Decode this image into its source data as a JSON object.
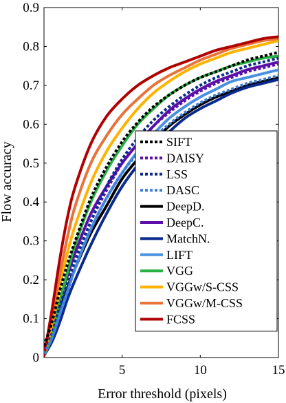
{
  "chart_data": {
    "type": "line",
    "xlabel": "Error threshold (pixels)",
    "ylabel": "Flow accuracy",
    "xlim": [
      0,
      15
    ],
    "ylim": [
      0,
      0.9
    ],
    "xticks": [
      5,
      10,
      15
    ],
    "yticks": [
      0,
      0.1,
      0.2,
      0.3,
      0.4,
      0.5,
      0.6,
      0.7,
      0.8,
      0.9
    ],
    "grid": false,
    "legend_position": "bottom-right",
    "x": [
      0,
      0.5,
      1,
      1.5,
      2,
      3,
      4,
      5,
      6,
      7,
      8,
      9,
      10,
      11,
      12,
      13,
      14,
      15
    ],
    "series": [
      {
        "name": "SIFT",
        "color": "#000000",
        "style": "dotted",
        "values": [
          0.03,
          0.09,
          0.17,
          0.24,
          0.3,
          0.41,
          0.49,
          0.555,
          0.605,
          0.645,
          0.675,
          0.7,
          0.72,
          0.735,
          0.75,
          0.765,
          0.775,
          0.785
        ]
      },
      {
        "name": "DAISY",
        "color": "#5b0fa8",
        "style": "dotted",
        "values": [
          0.01,
          0.06,
          0.13,
          0.19,
          0.25,
          0.35,
          0.43,
          0.5,
          0.55,
          0.595,
          0.63,
          0.66,
          0.685,
          0.705,
          0.72,
          0.735,
          0.745,
          0.755
        ]
      },
      {
        "name": "LSS",
        "color": "#0a2a8c",
        "style": "dotted",
        "values": [
          0.01,
          0.06,
          0.13,
          0.19,
          0.25,
          0.35,
          0.44,
          0.51,
          0.565,
          0.61,
          0.645,
          0.675,
          0.7,
          0.72,
          0.735,
          0.75,
          0.76,
          0.77
        ]
      },
      {
        "name": "DASC",
        "color": "#3b7dd8",
        "style": "dotted",
        "values": [
          0.01,
          0.05,
          0.11,
          0.17,
          0.23,
          0.33,
          0.41,
          0.475,
          0.525,
          0.565,
          0.6,
          0.63,
          0.655,
          0.675,
          0.69,
          0.705,
          0.715,
          0.725
        ]
      },
      {
        "name": "DeepD.",
        "color": "#000000",
        "style": "solid",
        "values": [
          0.01,
          0.06,
          0.12,
          0.18,
          0.23,
          0.32,
          0.39,
          0.46,
          0.51,
          0.555,
          0.595,
          0.625,
          0.65,
          0.67,
          0.685,
          0.7,
          0.71,
          0.72
        ]
      },
      {
        "name": "DeepC.",
        "color": "#5b0fa8",
        "style": "solid",
        "values": [
          0.005,
          0.06,
          0.14,
          0.21,
          0.27,
          0.37,
          0.44,
          0.5,
          0.55,
          0.595,
          0.635,
          0.665,
          0.69,
          0.71,
          0.725,
          0.74,
          0.75,
          0.76
        ]
      },
      {
        "name": "MatchN.",
        "color": "#0a2a8c",
        "style": "solid",
        "values": [
          0.005,
          0.04,
          0.09,
          0.15,
          0.2,
          0.29,
          0.37,
          0.44,
          0.495,
          0.54,
          0.58,
          0.615,
          0.64,
          0.66,
          0.68,
          0.695,
          0.705,
          0.715
        ]
      },
      {
        "name": "LIFT",
        "color": "#4a90e2",
        "style": "solid",
        "values": [
          0.005,
          0.05,
          0.11,
          0.17,
          0.23,
          0.33,
          0.41,
          0.475,
          0.53,
          0.575,
          0.615,
          0.645,
          0.67,
          0.69,
          0.71,
          0.72,
          0.73,
          0.74
        ]
      },
      {
        "name": "VGG",
        "color": "#2ab043",
        "style": "solid",
        "values": [
          0.005,
          0.06,
          0.14,
          0.22,
          0.29,
          0.4,
          0.48,
          0.545,
          0.6,
          0.64,
          0.675,
          0.7,
          0.72,
          0.735,
          0.75,
          0.76,
          0.77,
          0.775
        ]
      },
      {
        "name": "VGGw/S-CSS",
        "color": "#ffb300",
        "style": "solid",
        "values": [
          0.005,
          0.08,
          0.18,
          0.27,
          0.34,
          0.45,
          0.53,
          0.59,
          0.64,
          0.68,
          0.71,
          0.735,
          0.755,
          0.77,
          0.785,
          0.795,
          0.805,
          0.815
        ]
      },
      {
        "name": "VGGw/M-CSS",
        "color": "#e8733a",
        "style": "solid",
        "values": [
          0.005,
          0.1,
          0.21,
          0.31,
          0.39,
          0.5,
          0.57,
          0.625,
          0.665,
          0.7,
          0.725,
          0.745,
          0.765,
          0.78,
          0.795,
          0.805,
          0.815,
          0.82
        ]
      },
      {
        "name": "FCSS",
        "color": "#b00000",
        "style": "solid",
        "values": [
          0.005,
          0.12,
          0.25,
          0.36,
          0.44,
          0.55,
          0.62,
          0.665,
          0.7,
          0.725,
          0.745,
          0.76,
          0.775,
          0.79,
          0.8,
          0.81,
          0.82,
          0.825
        ]
      }
    ]
  }
}
